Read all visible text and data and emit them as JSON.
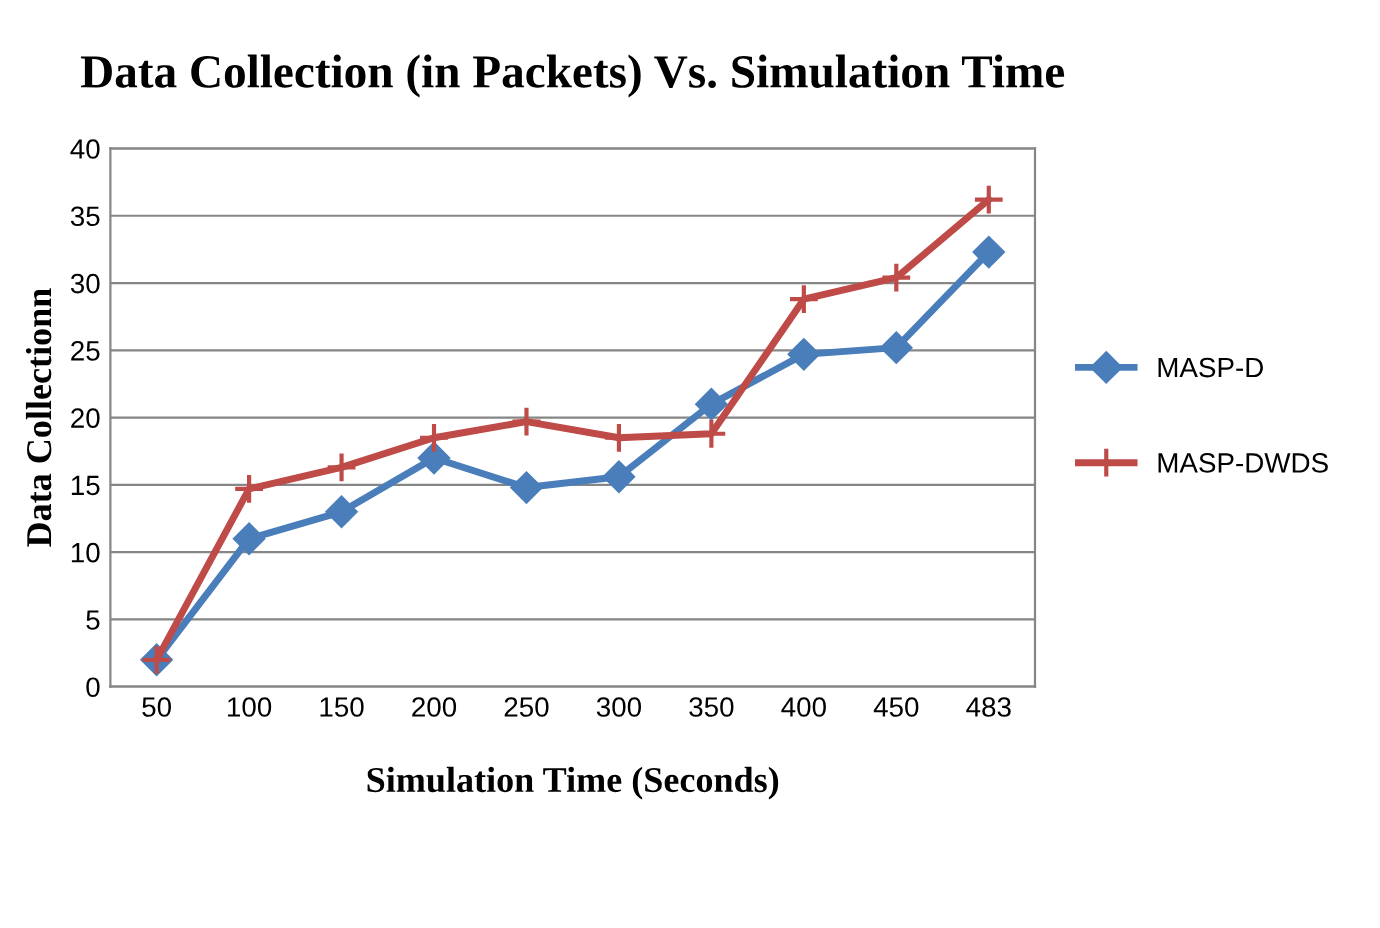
{
  "chart_data": {
    "type": "line",
    "title": "Data Collection (in Packets) Vs. Simulation Time",
    "xlabel": "Simulation Time (Seconds)",
    "ylabel": "Data Collectionn",
    "categories": [
      "50",
      "100",
      "150",
      "200",
      "250",
      "300",
      "350",
      "400",
      "450",
      "483"
    ],
    "series": [
      {
        "name": "MASP-D",
        "color": "#4a7ebb",
        "marker": "diamond",
        "values": [
          2,
          11,
          13,
          17,
          14.8,
          15.6,
          21,
          24.7,
          25.2,
          32.3
        ]
      },
      {
        "name": "MASP-DWDS",
        "color": "#be4b48",
        "marker": "cross",
        "values": [
          2,
          14.7,
          16.3,
          18.5,
          19.7,
          18.5,
          18.8,
          28.8,
          30.4,
          36.2
        ]
      }
    ],
    "ylim": [
      0,
      40
    ],
    "yticks": [
      0,
      5,
      10,
      15,
      20,
      25,
      30,
      35,
      40
    ],
    "grid": "y",
    "legend": "right",
    "line_style": "solid"
  }
}
